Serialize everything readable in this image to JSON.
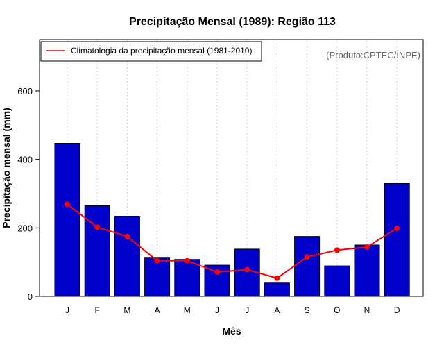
{
  "chart_data": {
    "type": "bar",
    "title": "Precipitação Mensal (1989): Região 113",
    "xlabel": "Mês",
    "ylabel": "Precipitação mensal (mm)",
    "ylim": [
      0,
      750
    ],
    "yticks": [
      0,
      200,
      400,
      600
    ],
    "grid": "vertical-dashed",
    "categories": [
      "J",
      "F",
      "M",
      "A",
      "M",
      "J",
      "J",
      "A",
      "S",
      "O",
      "N",
      "D"
    ],
    "series": [
      {
        "name": "Precipitação mensal (1989)",
        "type": "bar",
        "color": "#0000cd",
        "values": [
          447,
          265,
          234,
          112,
          108,
          91,
          138,
          39,
          175,
          89,
          150,
          330
        ]
      },
      {
        "name": "Climatologia da precipitação mensal (1981-2010)",
        "type": "line",
        "color": "#ff0000",
        "values": [
          269,
          202,
          175,
          104,
          104,
          71,
          78,
          53,
          115,
          135,
          144,
          199
        ]
      }
    ],
    "legend": {
      "position": "top-left",
      "entries": [
        "Climatologia da precipitação mensal (1981-2010)"
      ]
    },
    "annotation": "(Produto:CPTEC/INPE)"
  }
}
